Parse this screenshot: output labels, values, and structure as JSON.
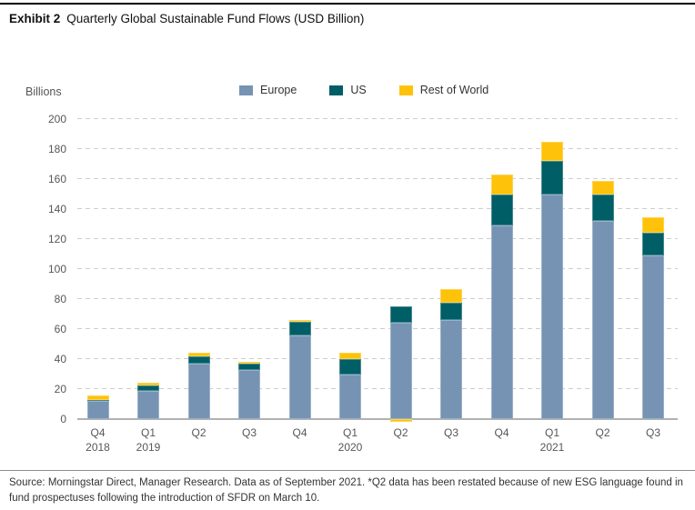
{
  "header": {
    "exhibit": "Exhibit 2",
    "title": "Quarterly Global Sustainable Fund Flows (USD Billion)"
  },
  "legend": [
    {
      "label": "Europe",
      "color": "#7693B3"
    },
    {
      "label": "US",
      "color": "#005E66"
    },
    {
      "label": "Rest of World",
      "color": "#FFC20A"
    }
  ],
  "chart_data": {
    "type": "bar",
    "stacked": true,
    "title": "Quarterly Global Sustainable Fund Flows (USD Billion)",
    "xlabel": "",
    "ylabel": "Billions",
    "ylim": [
      0,
      200
    ],
    "ytick_step": 20,
    "grid": "horizontal-dashed",
    "legend_position": "top",
    "categories": [
      "Q4",
      "Q1",
      "Q2",
      "Q3",
      "Q4",
      "Q1",
      "Q2",
      "Q3",
      "Q4",
      "Q1",
      "Q2",
      "Q3"
    ],
    "year_labels": {
      "0": "2018",
      "1": "2019",
      "5": "2020",
      "9": "2021"
    },
    "series": [
      {
        "name": "Europe",
        "color": "#7693B3",
        "values": [
          12,
          18.5,
          37,
          33,
          56,
          29.5,
          64,
          66,
          129,
          150,
          132,
          109
        ]
      },
      {
        "name": "US",
        "color": "#005E66",
        "values": [
          0.5,
          4,
          5,
          4,
          9,
          10.5,
          11,
          11.5,
          21,
          22,
          18,
          15.5
        ]
      },
      {
        "name": "Rest of World",
        "color": "#FFC20A",
        "values": [
          3.5,
          2,
          2,
          1,
          1,
          4,
          -2,
          9,
          13,
          13,
          9,
          10
        ]
      }
    ]
  },
  "footer": {
    "source": "Source: Morningstar Direct, Manager Research. Data as of September 2021. *Q2 data has been restated because of new ESG language found in fund prospectuses following the introduction of SFDR on March 10."
  }
}
